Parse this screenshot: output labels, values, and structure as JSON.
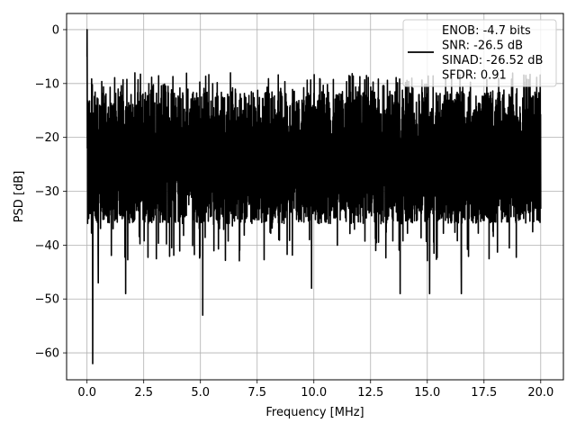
{
  "chart_data": {
    "type": "line",
    "title": "",
    "xlabel": "Frequency [MHz]",
    "ylabel": "PSD [dB]",
    "xlim": [
      -0.9,
      21.0
    ],
    "ylim": [
      -65,
      3
    ],
    "xticks": [
      0.0,
      2.5,
      5.0,
      7.5,
      10.0,
      12.5,
      15.0,
      17.5,
      20.0
    ],
    "xtick_labels": [
      "0.0",
      "2.5",
      "5.0",
      "7.5",
      "10.0",
      "12.5",
      "15.0",
      "17.5",
      "20.0"
    ],
    "yticks": [
      0,
      -10,
      -20,
      -30,
      -40,
      -50,
      -60
    ],
    "ytick_labels": [
      "0",
      "−10",
      "−20",
      "−30",
      "−40",
      "−50",
      "−60"
    ],
    "grid": true,
    "legend_position": "top-right",
    "legend": [
      "ENOB: -4.7 bits",
      "SNR: -26.5 dB",
      "SINAD: -26.52 dB",
      "SFDR: 0.91"
    ],
    "line_color": "#000000",
    "series": [
      {
        "description": "dense noise-like PSD trace",
        "x_range": [
          0.0,
          20.0
        ],
        "fundamental_peak": {
          "x": 0.0,
          "y": 0.0
        },
        "typical_upper_envelope": -12,
        "typical_lower_envelope": -35,
        "notable_minima": [
          {
            "x": 0.25,
            "y": -62
          },
          {
            "x": 0.5,
            "y": -47
          },
          {
            "x": 1.7,
            "y": -49
          },
          {
            "x": 5.1,
            "y": -53
          },
          {
            "x": 9.9,
            "y": -48
          },
          {
            "x": 13.8,
            "y": -49
          },
          {
            "x": 15.1,
            "y": -49
          },
          {
            "x": 16.5,
            "y": -49
          }
        ]
      }
    ]
  }
}
